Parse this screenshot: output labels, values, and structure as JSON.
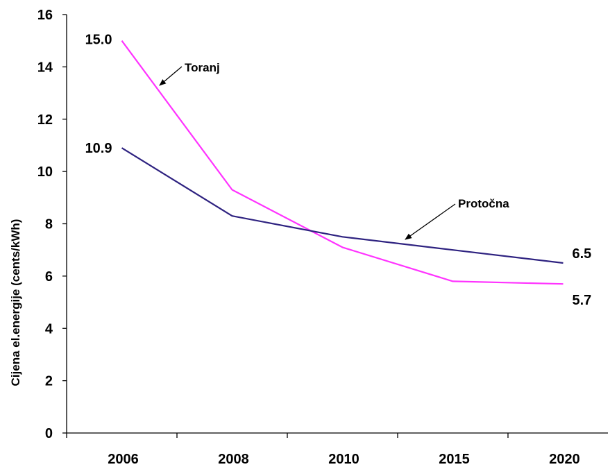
{
  "chart_data": {
    "type": "line",
    "title": "",
    "xlabel": "",
    "ylabel": "Cijena el.energije (cents/kWh)",
    "categories": [
      "2006",
      "2008",
      "2010",
      "2015",
      "2020"
    ],
    "ylim": [
      0,
      16
    ],
    "yticks": [
      "0",
      "2",
      "4",
      "6",
      "8",
      "10",
      "12",
      "14",
      "16"
    ],
    "grid": false,
    "series": [
      {
        "name": "Toranj",
        "color": "#ff33ff",
        "values": [
          15.0,
          9.3,
          7.1,
          5.8,
          5.7
        ]
      },
      {
        "name": "Protočna",
        "color": "#2e2280",
        "values": [
          10.9,
          8.3,
          7.5,
          7.0,
          6.5
        ]
      }
    ],
    "data_labels": [
      {
        "text": "15.0",
        "series": 0,
        "point": 0
      },
      {
        "text": "10.9",
        "series": 1,
        "point": 0
      },
      {
        "text": "6.5",
        "series": 1,
        "point": 4
      },
      {
        "text": "5.7",
        "series": 0,
        "point": 4
      }
    ],
    "annotations": [
      {
        "text": "Toranj",
        "series": 0
      },
      {
        "text": "Protočna",
        "series": 1
      }
    ]
  }
}
